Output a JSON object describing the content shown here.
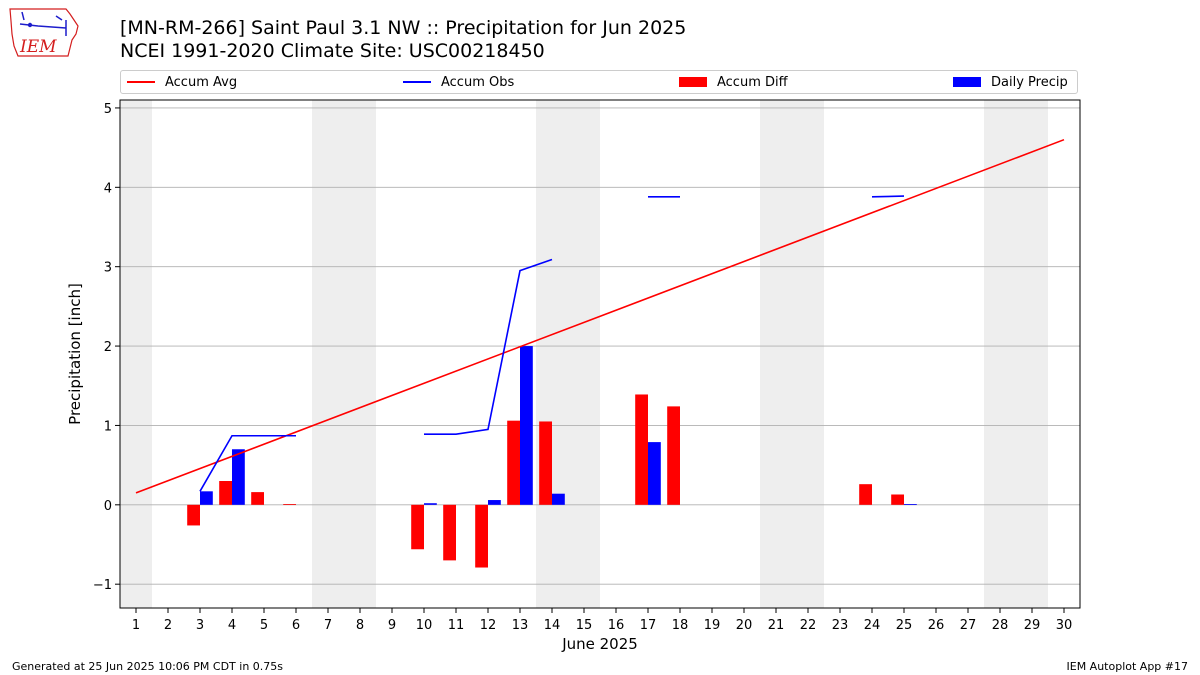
{
  "header": {
    "title_line1": "[MN-RM-266] Saint Paul 3.1 NW :: Precipitation for Jun 2025",
    "title_line2": "NCEI 1991-2020 Climate Site: USC00218450"
  },
  "logo": {
    "text": "IEM",
    "color": "#d41e1e",
    "accent": "#1d1dcc"
  },
  "footer": {
    "left": "Generated at 25 Jun 2025 10:06 PM CDT in 0.75s",
    "right": "IEM Autoplot App #17"
  },
  "chart_data": {
    "type": "bar",
    "xlabel": "June 2025",
    "ylabel": "Precipitation [inch]",
    "xlim": [
      0.5,
      30.5
    ],
    "ylim": [
      -1.3,
      5.1
    ],
    "yticks": [
      -1,
      0,
      1,
      2,
      3,
      4,
      5
    ],
    "ytick_labels": [
      "−1",
      "0",
      "1",
      "2",
      "3",
      "4",
      "5"
    ],
    "grid": "horizontal",
    "legend_placement": "top",
    "weekend_shading": [
      [
        0.5,
        1.5
      ],
      [
        6.5,
        8.5
      ],
      [
        13.5,
        15.5
      ],
      [
        20.5,
        22.5
      ],
      [
        27.5,
        29.5
      ]
    ],
    "days": [
      1,
      2,
      3,
      4,
      5,
      6,
      7,
      8,
      9,
      10,
      11,
      12,
      13,
      14,
      15,
      16,
      17,
      18,
      19,
      20,
      21,
      22,
      23,
      24,
      25,
      26,
      27,
      28,
      29,
      30
    ],
    "series": [
      {
        "name": "Accum Avg",
        "kind": "line",
        "color": "#ff0000",
        "x": [
          1,
          30
        ],
        "y": [
          0.15,
          4.6
        ]
      },
      {
        "name": "Accum Obs",
        "kind": "line",
        "color": "#0000ff",
        "segments": [
          {
            "x": [
              3,
              4,
              5,
              6
            ],
            "y": [
              0.17,
              0.87,
              0.87,
              0.87
            ]
          },
          {
            "x": [
              10,
              11,
              12,
              13,
              14
            ],
            "y": [
              0.89,
              0.89,
              0.95,
              2.95,
              3.09
            ]
          },
          {
            "x": [
              17,
              18
            ],
            "y": [
              3.88,
              3.88
            ]
          },
          {
            "x": [
              24,
              25
            ],
            "y": [
              3.88,
              3.89
            ]
          }
        ]
      },
      {
        "name": "Accum Diff",
        "kind": "bar",
        "color": "#ff0000",
        "x": [
          3,
          4,
          5,
          6,
          10,
          11,
          12,
          13,
          14,
          17,
          18,
          24,
          25
        ],
        "y": [
          -0.26,
          0.3,
          0.16,
          0.01,
          -0.56,
          -0.7,
          -0.79,
          1.06,
          1.05,
          1.39,
          1.24,
          0.26,
          0.13
        ]
      },
      {
        "name": "Daily Precip",
        "kind": "bar",
        "color": "#0000ff",
        "x": [
          3,
          4,
          10,
          12,
          13,
          14,
          17,
          25
        ],
        "y": [
          0.17,
          0.7,
          0.02,
          0.06,
          2.0,
          0.14,
          0.79,
          0.01
        ]
      }
    ]
  }
}
